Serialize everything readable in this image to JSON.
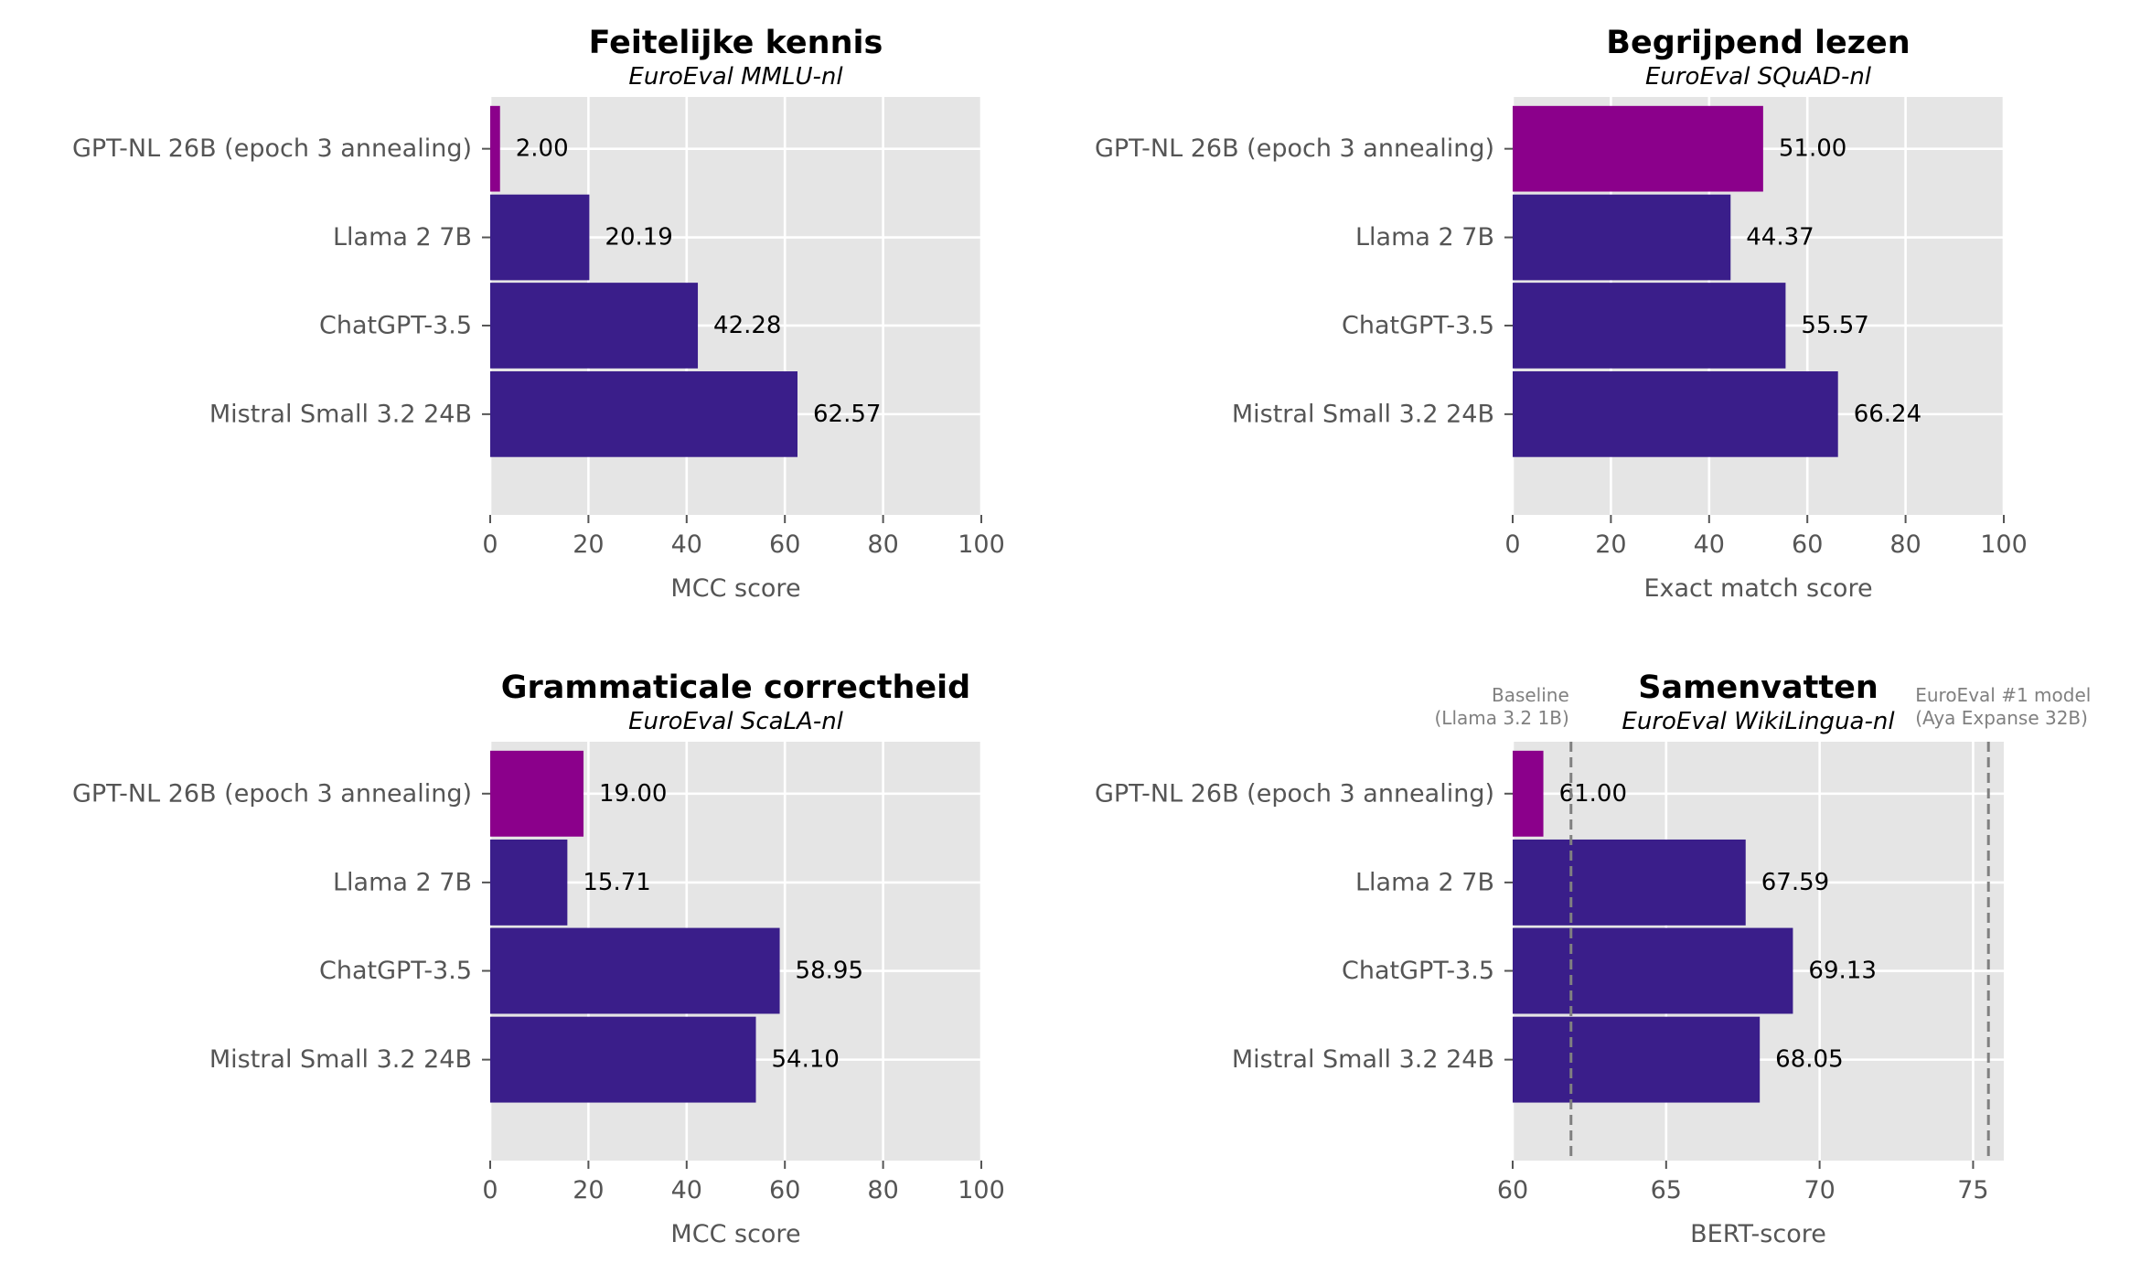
{
  "chart_data": [
    {
      "type": "bar",
      "orientation": "horizontal",
      "title": "Feitelijke kennis",
      "subtitle": "EuroEval MMLU-nl",
      "xlabel": "MCC score",
      "ylabel": "",
      "xlim": [
        0,
        100
      ],
      "xticks": [
        0,
        20,
        40,
        60,
        80,
        100
      ],
      "grid": true,
      "categories": [
        "GPT-NL 26B (epoch 3 annealing)",
        "Llama 2 7B",
        "ChatGPT-3.5",
        "Mistral Small 3.2 24B"
      ],
      "values": [
        2.0,
        20.19,
        42.28,
        62.57
      ],
      "value_labels": [
        "2.00",
        "20.19",
        "42.28",
        "62.57"
      ],
      "bar_colors": [
        "#8b008b",
        "#3a1e8a",
        "#3a1e8a",
        "#3a1e8a"
      ],
      "reference_lines": []
    },
    {
      "type": "bar",
      "orientation": "horizontal",
      "title": "Begrijpend lezen",
      "subtitle": "EuroEval SQuAD-nl",
      "xlabel": "Exact match score",
      "ylabel": "",
      "xlim": [
        0,
        100
      ],
      "xticks": [
        0,
        20,
        40,
        60,
        80,
        100
      ],
      "grid": true,
      "categories": [
        "GPT-NL 26B (epoch 3 annealing)",
        "Llama 2 7B",
        "ChatGPT-3.5",
        "Mistral Small 3.2 24B"
      ],
      "values": [
        51.0,
        44.37,
        55.57,
        66.24
      ],
      "value_labels": [
        "51.00",
        "44.37",
        "55.57",
        "66.24"
      ],
      "bar_colors": [
        "#8b008b",
        "#3a1e8a",
        "#3a1e8a",
        "#3a1e8a"
      ],
      "reference_lines": []
    },
    {
      "type": "bar",
      "orientation": "horizontal",
      "title": "Grammaticale correctheid",
      "subtitle": "EuroEval ScaLA-nl",
      "xlabel": "MCC score",
      "ylabel": "",
      "xlim": [
        0,
        100
      ],
      "xticks": [
        0,
        20,
        40,
        60,
        80,
        100
      ],
      "grid": true,
      "categories": [
        "GPT-NL 26B (epoch 3 annealing)",
        "Llama 2 7B",
        "ChatGPT-3.5",
        "Mistral Small 3.2 24B"
      ],
      "values": [
        19.0,
        15.71,
        58.95,
        54.1
      ],
      "value_labels": [
        "19.00",
        "15.71",
        "58.95",
        "54.10"
      ],
      "bar_colors": [
        "#8b008b",
        "#3a1e8a",
        "#3a1e8a",
        "#3a1e8a"
      ],
      "reference_lines": []
    },
    {
      "type": "bar",
      "orientation": "horizontal",
      "title": "Samenvatten",
      "subtitle": "EuroEval WikiLingua-nl",
      "xlabel": "BERT-score",
      "ylabel": "",
      "xlim": [
        60,
        76
      ],
      "xticks": [
        60,
        65,
        70,
        75
      ],
      "grid": true,
      "categories": [
        "GPT-NL 26B (epoch 3 annealing)",
        "Llama 2 7B",
        "ChatGPT-3.5",
        "Mistral Small 3.2 24B"
      ],
      "values": [
        61.0,
        67.59,
        69.13,
        68.05
      ],
      "value_labels": [
        "61.00",
        "67.59",
        "69.13",
        "68.05"
      ],
      "bar_colors": [
        "#8b008b",
        "#3a1e8a",
        "#3a1e8a",
        "#3a1e8a"
      ],
      "reference_lines": [
        {
          "x": 61.9,
          "label_lines": [
            "Baseline",
            "(Llama 3.2 1B)"
          ],
          "label_side": "left"
        },
        {
          "x": 75.5,
          "label_lines": [
            "EuroEval #1 model",
            "(Aya Expanse 32B)"
          ],
          "label_side": "right"
        }
      ]
    }
  ],
  "colors": {
    "plot_background": "#e5e5e5",
    "grid": "#ffffff",
    "axis_text": "#555555",
    "value_text": "#000000",
    "reference_line": "#808080"
  }
}
